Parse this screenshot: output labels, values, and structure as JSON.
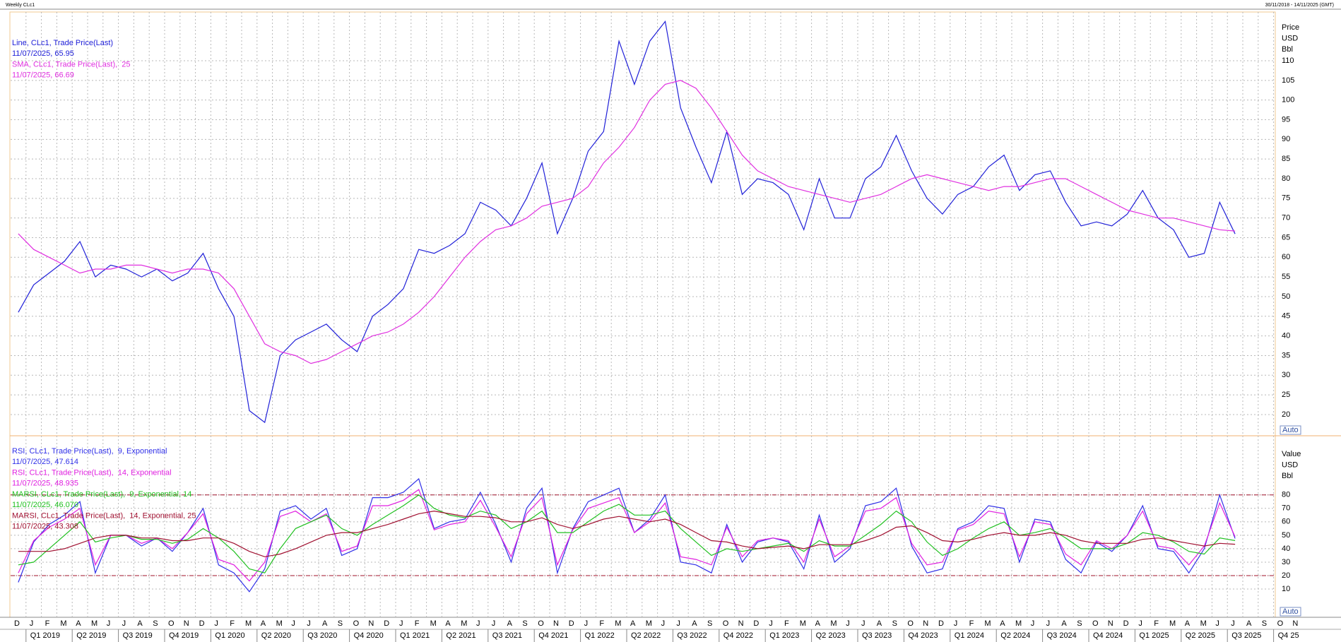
{
  "header": {
    "title": "Weekly CLc1",
    "range": "30/11/2018 - 14/11/2025 (GMT)"
  },
  "chart_data": [
    {
      "type": "line",
      "axis_titles": [
        "Price",
        "USD",
        "Bbl"
      ],
      "button": "Auto",
      "xlim": [
        "2018-12",
        "2025-11"
      ],
      "ylim": [
        14.6,
        122.4
      ],
      "yticks": [
        20,
        25,
        30,
        35,
        40,
        45,
        50,
        55,
        60,
        65,
        70,
        75,
        80,
        85,
        90,
        95,
        100,
        105,
        110
      ],
      "grid": true,
      "x": [
        "2018-12",
        "2019-01",
        "2019-02",
        "2019-03",
        "2019-04",
        "2019-05",
        "2019-06",
        "2019-07",
        "2019-08",
        "2019-09",
        "2019-10",
        "2019-11",
        "2019-12",
        "2020-01",
        "2020-02",
        "2020-03",
        "2020-04",
        "2020-05",
        "2020-06",
        "2020-07",
        "2020-08",
        "2020-09",
        "2020-10",
        "2020-11",
        "2020-12",
        "2021-01",
        "2021-02",
        "2021-03",
        "2021-04",
        "2021-05",
        "2021-06",
        "2021-07",
        "2021-08",
        "2021-09",
        "2021-10",
        "2021-11",
        "2021-12",
        "2022-01",
        "2022-02",
        "2022-03",
        "2022-04",
        "2022-05",
        "2022-06",
        "2022-07",
        "2022-08",
        "2022-09",
        "2022-10",
        "2022-11",
        "2022-12",
        "2023-01",
        "2023-02",
        "2023-03",
        "2023-04",
        "2023-05",
        "2023-06",
        "2023-07",
        "2023-08",
        "2023-09",
        "2023-10",
        "2023-11",
        "2023-12",
        "2024-01",
        "2024-02",
        "2024-03",
        "2024-04",
        "2024-05",
        "2024-06",
        "2024-07",
        "2024-08",
        "2024-09",
        "2024-10",
        "2024-11",
        "2024-12",
        "2025-01",
        "2025-02",
        "2025-03",
        "2025-04",
        "2025-05",
        "2025-06",
        "2025-07"
      ],
      "series": [
        {
          "name": "Line, CLc1, Trade Price(Last)",
          "legend_value": "11/07/2025, 65.95",
          "color": "#2020d8",
          "values": [
            46,
            53,
            56,
            59,
            64,
            55,
            58,
            57,
            55,
            57,
            54,
            56,
            61,
            52,
            45,
            21,
            18,
            35,
            39,
            41,
            43,
            39,
            36,
            45,
            48,
            52,
            62,
            61,
            63,
            66,
            74,
            72,
            68,
            75,
            84,
            66,
            75,
            87,
            92,
            115,
            104,
            115,
            120,
            98,
            88,
            79,
            92,
            76,
            80,
            79,
            76,
            67,
            80,
            70,
            70,
            80,
            83,
            91,
            82,
            75,
            71,
            76,
            78,
            83,
            86,
            77,
            81,
            82,
            74,
            68,
            69,
            68,
            71,
            77,
            70,
            67,
            60,
            61,
            74,
            65.95
          ]
        },
        {
          "name": "SMA, CLc1, Trade Price(Last),  25",
          "legend_value": "11/07/2025, 66.69",
          "color": "#e030e0",
          "values": [
            66,
            62,
            60,
            58,
            56,
            57,
            57,
            58,
            58,
            57,
            56,
            57,
            57,
            56,
            52,
            45,
            38,
            36,
            35,
            33,
            34,
            36,
            38,
            40,
            41,
            43,
            46,
            50,
            55,
            60,
            64,
            67,
            68,
            70,
            73,
            74,
            75,
            78,
            84,
            88,
            93,
            100,
            104,
            105,
            103,
            98,
            92,
            86,
            82,
            80,
            78,
            77,
            76,
            75,
            74,
            75,
            76,
            78,
            80,
            81,
            80,
            79,
            78,
            77,
            78,
            78,
            79,
            80,
            80,
            78,
            76,
            74,
            72,
            71,
            70,
            70,
            69,
            68,
            67,
            66.69
          ]
        }
      ]
    },
    {
      "type": "line",
      "axis_titles": [
        "Value",
        "USD",
        "Bbl"
      ],
      "button": "Auto",
      "xlim": [
        "2018-12",
        "2025-11"
      ],
      "ylim": [
        -11,
        124
      ],
      "yticks": [
        10,
        20,
        30,
        40,
        50,
        60,
        70,
        80
      ],
      "grid": true,
      "ref_lines": [
        20,
        80
      ],
      "ref_color": "#a0102a",
      "x": [
        "2018-12",
        "2019-01",
        "2019-02",
        "2019-03",
        "2019-04",
        "2019-05",
        "2019-06",
        "2019-07",
        "2019-08",
        "2019-09",
        "2019-10",
        "2019-11",
        "2019-12",
        "2020-01",
        "2020-02",
        "2020-03",
        "2020-04",
        "2020-05",
        "2020-06",
        "2020-07",
        "2020-08",
        "2020-09",
        "2020-10",
        "2020-11",
        "2020-12",
        "2021-01",
        "2021-02",
        "2021-03",
        "2021-04",
        "2021-05",
        "2021-06",
        "2021-07",
        "2021-08",
        "2021-09",
        "2021-10",
        "2021-11",
        "2021-12",
        "2022-01",
        "2022-02",
        "2022-03",
        "2022-04",
        "2022-05",
        "2022-06",
        "2022-07",
        "2022-08",
        "2022-09",
        "2022-10",
        "2022-11",
        "2022-12",
        "2023-01",
        "2023-02",
        "2023-03",
        "2023-04",
        "2023-05",
        "2023-06",
        "2023-07",
        "2023-08",
        "2023-09",
        "2023-10",
        "2023-11",
        "2023-12",
        "2024-01",
        "2024-02",
        "2024-03",
        "2024-04",
        "2024-05",
        "2024-06",
        "2024-07",
        "2024-08",
        "2024-09",
        "2024-10",
        "2024-11",
        "2024-12",
        "2025-01",
        "2025-02",
        "2025-03",
        "2025-04",
        "2025-05",
        "2025-06",
        "2025-07"
      ],
      "series": [
        {
          "name": "RSI, CLc1, Trade Price(Last),  9, Exponential",
          "legend_value": "11/07/2025, 47.614",
          "color": "#3030e8",
          "values": [
            15,
            45,
            58,
            65,
            75,
            22,
            50,
            50,
            42,
            48,
            38,
            52,
            70,
            28,
            22,
            8,
            25,
            68,
            72,
            62,
            70,
            35,
            40,
            78,
            78,
            82,
            92,
            55,
            60,
            62,
            82,
            58,
            30,
            70,
            85,
            22,
            55,
            75,
            80,
            85,
            52,
            62,
            80,
            30,
            28,
            22,
            58,
            30,
            45,
            48,
            45,
            25,
            65,
            30,
            40,
            72,
            75,
            85,
            42,
            22,
            25,
            55,
            60,
            72,
            70,
            30,
            62,
            60,
            32,
            22,
            45,
            38,
            50,
            72,
            40,
            38,
            22,
            40,
            80,
            47.614
          ]
        },
        {
          "name": "RSI, CLc1, Trade Price(Last),  14, Exponential",
          "legend_value": "11/07/2025, 48.935",
          "color": "#e020e0",
          "values": [
            22,
            46,
            56,
            62,
            70,
            28,
            50,
            50,
            44,
            48,
            40,
            52,
            66,
            32,
            28,
            16,
            30,
            64,
            68,
            60,
            66,
            38,
            42,
            72,
            72,
            76,
            84,
            54,
            58,
            60,
            76,
            56,
            34,
            66,
            78,
            28,
            54,
            70,
            74,
            78,
            52,
            60,
            74,
            34,
            32,
            28,
            56,
            34,
            46,
            48,
            46,
            30,
            62,
            34,
            42,
            68,
            70,
            78,
            44,
            28,
            30,
            54,
            58,
            68,
            66,
            34,
            60,
            58,
            36,
            28,
            46,
            40,
            50,
            68,
            42,
            40,
            28,
            42,
            74,
            48.935
          ]
        },
        {
          "name": "MARSI, CLc1, Trade Price(Last),  9, Exponential, 14",
          "legend_value": "11/07/2025, 46.070",
          "color": "#20c020",
          "values": [
            28,
            30,
            40,
            50,
            60,
            45,
            48,
            50,
            47,
            47,
            44,
            47,
            55,
            48,
            38,
            25,
            22,
            40,
            55,
            60,
            65,
            55,
            50,
            58,
            65,
            72,
            80,
            70,
            65,
            63,
            68,
            65,
            55,
            60,
            68,
            52,
            52,
            60,
            68,
            73,
            65,
            65,
            68,
            55,
            45,
            35,
            40,
            38,
            40,
            42,
            44,
            38,
            46,
            42,
            42,
            50,
            58,
            68,
            60,
            45,
            35,
            40,
            48,
            55,
            60,
            50,
            52,
            55,
            48,
            40,
            40,
            40,
            44,
            52,
            50,
            45,
            38,
            36,
            48,
            46.07
          ]
        },
        {
          "name": "MARSI, CLc1, Trade Price(Last),  14, Exponential, 25",
          "legend_value": "11/07/2025, 43.308",
          "color": "#a01030",
          "values": [
            38,
            38,
            38,
            40,
            44,
            48,
            50,
            50,
            48,
            48,
            46,
            46,
            48,
            48,
            44,
            38,
            34,
            36,
            40,
            45,
            50,
            52,
            52,
            55,
            58,
            62,
            66,
            68,
            66,
            64,
            64,
            63,
            60,
            60,
            63,
            58,
            55,
            58,
            62,
            64,
            62,
            60,
            62,
            58,
            52,
            46,
            45,
            42,
            40,
            41,
            42,
            40,
            43,
            43,
            43,
            46,
            50,
            56,
            57,
            52,
            46,
            45,
            47,
            50,
            52,
            50,
            50,
            52,
            50,
            46,
            44,
            44,
            44,
            47,
            48,
            46,
            44,
            42,
            44,
            43.308
          ]
        }
      ],
      "xtick_months": [
        "D",
        "J",
        "F",
        "M",
        "A",
        "M",
        "J",
        "J",
        "A",
        "S",
        "O",
        "N",
        "D",
        "J",
        "F",
        "M",
        "A",
        "M",
        "J",
        "J",
        "A",
        "S",
        "O",
        "N",
        "D",
        "J",
        "F",
        "M",
        "A",
        "M",
        "J",
        "J",
        "A",
        "S",
        "O",
        "N",
        "D",
        "J",
        "F",
        "M",
        "A",
        "M",
        "J",
        "J",
        "A",
        "S",
        "O",
        "N",
        "D",
        "J",
        "F",
        "M",
        "A",
        "M",
        "J",
        "J",
        "A",
        "S",
        "O",
        "N",
        "D",
        "J",
        "F",
        "M",
        "A",
        "M",
        "J",
        "J",
        "A",
        "S",
        "O",
        "N",
        "D",
        "J",
        "F",
        "M",
        "A",
        "M",
        "J",
        "J",
        "A",
        "S",
        "O",
        "N"
      ],
      "xtick_quarters": [
        "Q1 2019",
        "Q2 2019",
        "Q3 2019",
        "Q4 2019",
        "Q1 2020",
        "Q2 2020",
        "Q3 2020",
        "Q4 2020",
        "Q1 2021",
        "Q2 2021",
        "Q3 2021",
        "Q4 2021",
        "Q1 2022",
        "Q2 2022",
        "Q3 2022",
        "Q4 2022",
        "Q1 2023",
        "Q2 2023",
        "Q3 2023",
        "Q4 2023",
        "Q1 2024",
        "Q2 2024",
        "Q3 2024",
        "Q4 2024",
        "Q1 2025",
        "Q2 2025",
        "Q3 2025",
        "Q4 25"
      ]
    }
  ]
}
